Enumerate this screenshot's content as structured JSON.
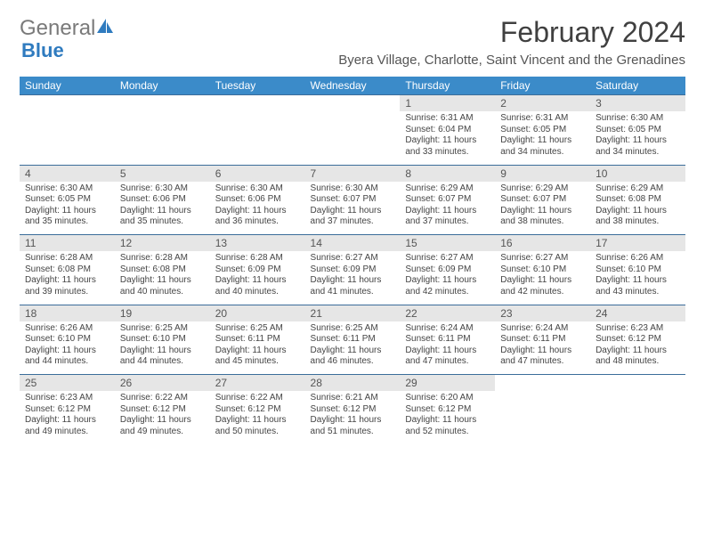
{
  "brand": {
    "part1": "General",
    "part2": "Blue"
  },
  "title": "February 2024",
  "location": "Byera Village, Charlotte, Saint Vincent and the Grenadines",
  "colors": {
    "headerBg": "#3b8bc9",
    "headerText": "#ffffff",
    "dayBg": "#e6e6e6",
    "border": "#3b6d9a",
    "logoBlue": "#2f7bbf",
    "logoGray": "#7a7a7a"
  },
  "dayHeaders": [
    "Sunday",
    "Monday",
    "Tuesday",
    "Wednesday",
    "Thursday",
    "Friday",
    "Saturday"
  ],
  "weeks": [
    [
      null,
      null,
      null,
      null,
      {
        "n": "1",
        "sr": "6:31 AM",
        "ss": "6:04 PM",
        "dl": "11 hours and 33 minutes."
      },
      {
        "n": "2",
        "sr": "6:31 AM",
        "ss": "6:05 PM",
        "dl": "11 hours and 34 minutes."
      },
      {
        "n": "3",
        "sr": "6:30 AM",
        "ss": "6:05 PM",
        "dl": "11 hours and 34 minutes."
      }
    ],
    [
      {
        "n": "4",
        "sr": "6:30 AM",
        "ss": "6:05 PM",
        "dl": "11 hours and 35 minutes."
      },
      {
        "n": "5",
        "sr": "6:30 AM",
        "ss": "6:06 PM",
        "dl": "11 hours and 35 minutes."
      },
      {
        "n": "6",
        "sr": "6:30 AM",
        "ss": "6:06 PM",
        "dl": "11 hours and 36 minutes."
      },
      {
        "n": "7",
        "sr": "6:30 AM",
        "ss": "6:07 PM",
        "dl": "11 hours and 37 minutes."
      },
      {
        "n": "8",
        "sr": "6:29 AM",
        "ss": "6:07 PM",
        "dl": "11 hours and 37 minutes."
      },
      {
        "n": "9",
        "sr": "6:29 AM",
        "ss": "6:07 PM",
        "dl": "11 hours and 38 minutes."
      },
      {
        "n": "10",
        "sr": "6:29 AM",
        "ss": "6:08 PM",
        "dl": "11 hours and 38 minutes."
      }
    ],
    [
      {
        "n": "11",
        "sr": "6:28 AM",
        "ss": "6:08 PM",
        "dl": "11 hours and 39 minutes."
      },
      {
        "n": "12",
        "sr": "6:28 AM",
        "ss": "6:08 PM",
        "dl": "11 hours and 40 minutes."
      },
      {
        "n": "13",
        "sr": "6:28 AM",
        "ss": "6:09 PM",
        "dl": "11 hours and 40 minutes."
      },
      {
        "n": "14",
        "sr": "6:27 AM",
        "ss": "6:09 PM",
        "dl": "11 hours and 41 minutes."
      },
      {
        "n": "15",
        "sr": "6:27 AM",
        "ss": "6:09 PM",
        "dl": "11 hours and 42 minutes."
      },
      {
        "n": "16",
        "sr": "6:27 AM",
        "ss": "6:10 PM",
        "dl": "11 hours and 42 minutes."
      },
      {
        "n": "17",
        "sr": "6:26 AM",
        "ss": "6:10 PM",
        "dl": "11 hours and 43 minutes."
      }
    ],
    [
      {
        "n": "18",
        "sr": "6:26 AM",
        "ss": "6:10 PM",
        "dl": "11 hours and 44 minutes."
      },
      {
        "n": "19",
        "sr": "6:25 AM",
        "ss": "6:10 PM",
        "dl": "11 hours and 44 minutes."
      },
      {
        "n": "20",
        "sr": "6:25 AM",
        "ss": "6:11 PM",
        "dl": "11 hours and 45 minutes."
      },
      {
        "n": "21",
        "sr": "6:25 AM",
        "ss": "6:11 PM",
        "dl": "11 hours and 46 minutes."
      },
      {
        "n": "22",
        "sr": "6:24 AM",
        "ss": "6:11 PM",
        "dl": "11 hours and 47 minutes."
      },
      {
        "n": "23",
        "sr": "6:24 AM",
        "ss": "6:11 PM",
        "dl": "11 hours and 47 minutes."
      },
      {
        "n": "24",
        "sr": "6:23 AM",
        "ss": "6:12 PM",
        "dl": "11 hours and 48 minutes."
      }
    ],
    [
      {
        "n": "25",
        "sr": "6:23 AM",
        "ss": "6:12 PM",
        "dl": "11 hours and 49 minutes."
      },
      {
        "n": "26",
        "sr": "6:22 AM",
        "ss": "6:12 PM",
        "dl": "11 hours and 49 minutes."
      },
      {
        "n": "27",
        "sr": "6:22 AM",
        "ss": "6:12 PM",
        "dl": "11 hours and 50 minutes."
      },
      {
        "n": "28",
        "sr": "6:21 AM",
        "ss": "6:12 PM",
        "dl": "11 hours and 51 minutes."
      },
      {
        "n": "29",
        "sr": "6:20 AM",
        "ss": "6:12 PM",
        "dl": "11 hours and 52 minutes."
      },
      null,
      null
    ]
  ],
  "labels": {
    "sunrise": "Sunrise:",
    "sunset": "Sunset:",
    "daylight": "Daylight:"
  }
}
